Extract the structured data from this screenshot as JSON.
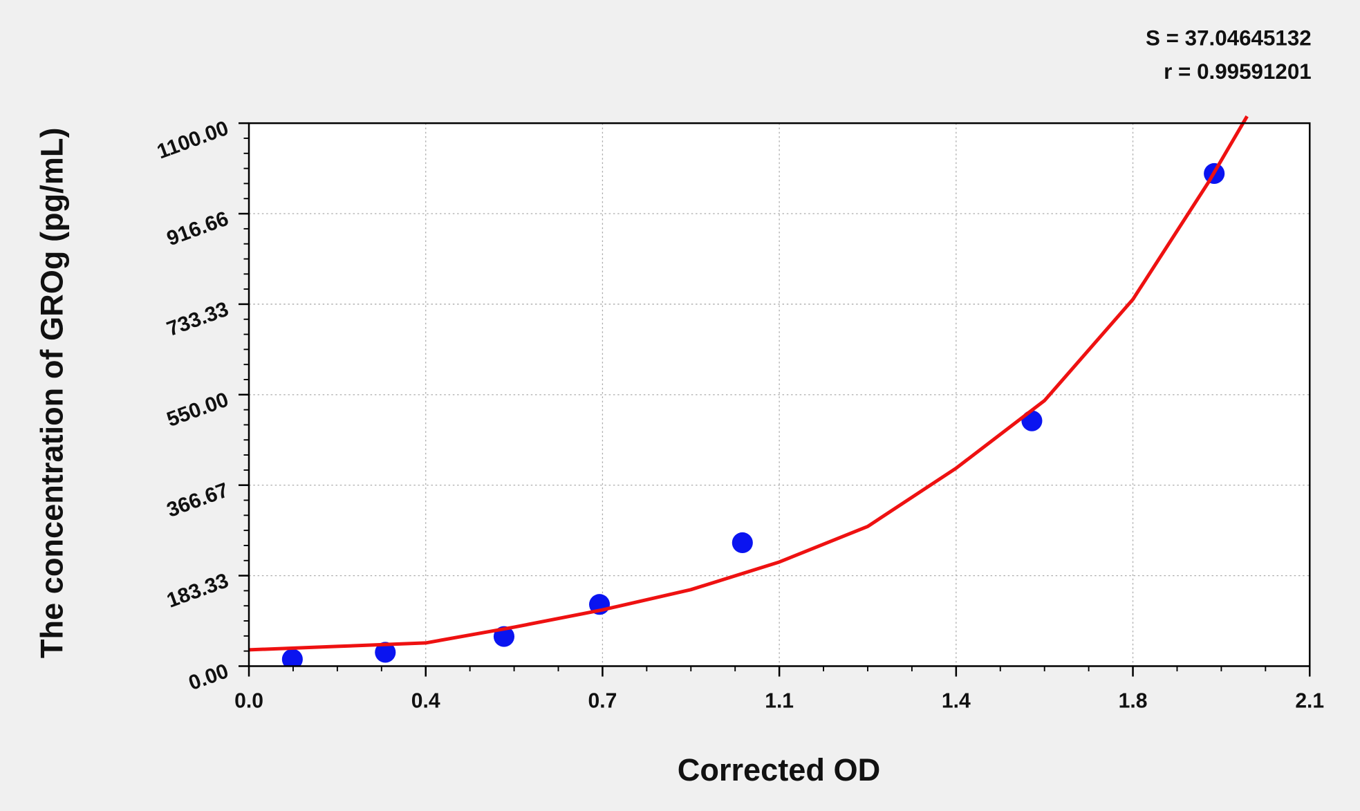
{
  "chart_data": {
    "type": "scatter",
    "y_label": "The concentration of GROg (pg/mL)",
    "x_label": "Corrected OD",
    "annotations": [
      "S = 37.04645132",
      "r = 0.99591201"
    ],
    "xlim": [
      0,
      2.1
    ],
    "ylim": [
      0,
      1100
    ],
    "xticks": [
      {
        "value": 0,
        "label": "0.0"
      },
      {
        "value": 0.35,
        "label": "0.4"
      },
      0.7,
      {
        "value": 1.05,
        "label": "1.1"
      },
      1.4,
      {
        "value": 1.75,
        "label": "1.8"
      },
      2.1
    ],
    "yticks": [
      {
        "value": 0,
        "label": "0.00"
      },
      183.33,
      366.67,
      {
        "value": 550,
        "label": "550.00"
      },
      733.33,
      916.66,
      {
        "value": 1100,
        "label": "1100.00"
      }
    ],
    "grid": true,
    "series": [
      {
        "type": "scatter",
        "color": "#0a14f0",
        "x": [
          0.086,
          0.27,
          0.505,
          0.694,
          0.977,
          1.55,
          1.911
        ],
        "values": [
          14,
          28,
          60,
          125,
          250,
          497,
          998
        ]
      },
      {
        "type": "line",
        "color": "#ee1111",
        "x": [
          0,
          0.175,
          0.35,
          0.525,
          0.7,
          0.875,
          1.05,
          1.225,
          1.4,
          1.575,
          1.75,
          1.9,
          1.976
        ],
        "values": [
          33,
          40,
          47,
          79,
          114,
          155,
          211,
          283,
          401,
          538,
          743,
          981,
          1114
        ]
      }
    ]
  }
}
